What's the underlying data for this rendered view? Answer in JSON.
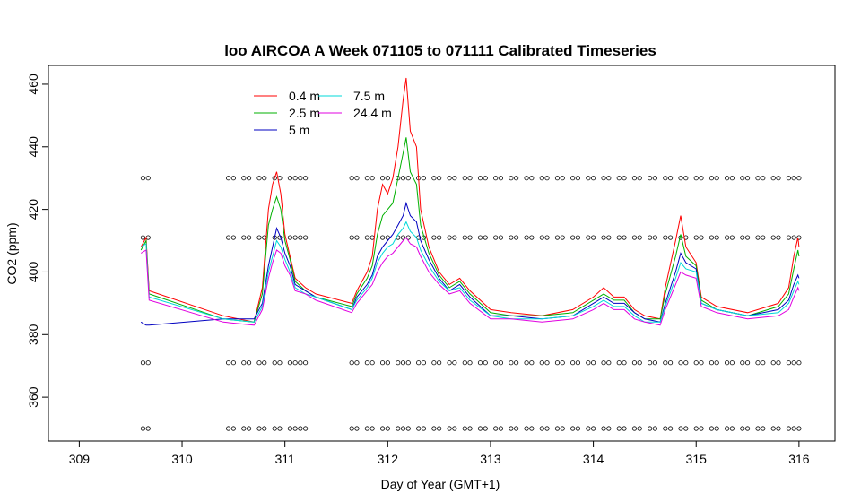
{
  "chart_data": {
    "type": "line",
    "title": "loo AIRCOA A  Week 071105 to 071111  Calibrated Timeseries",
    "xlabel": "Day of Year (GMT+1)",
    "ylabel": "CO2 (ppm)",
    "xlim": [
      308.7,
      316.35
    ],
    "ylim": [
      346,
      466
    ],
    "xticks": [
      309,
      310,
      311,
      312,
      313,
      314,
      315,
      316
    ],
    "yticks": [
      360,
      380,
      400,
      420,
      440,
      460
    ],
    "grid": false,
    "legend_position": "top-left",
    "series": [
      {
        "name": "0.4 m",
        "color": "#ff0000",
        "points": [
          [
            309.6,
            408
          ],
          [
            309.65,
            411
          ],
          [
            309.68,
            394
          ],
          [
            310.4,
            386
          ],
          [
            310.7,
            384
          ],
          [
            310.78,
            395
          ],
          [
            310.84,
            420
          ],
          [
            310.88,
            428
          ],
          [
            310.92,
            432
          ],
          [
            310.96,
            425
          ],
          [
            311.0,
            412
          ],
          [
            311.05,
            405
          ],
          [
            311.1,
            398
          ],
          [
            311.2,
            395
          ],
          [
            311.3,
            393
          ],
          [
            311.65,
            390
          ],
          [
            311.7,
            394
          ],
          [
            311.8,
            400
          ],
          [
            311.85,
            405
          ],
          [
            311.9,
            420
          ],
          [
            311.95,
            428
          ],
          [
            312.0,
            425
          ],
          [
            312.05,
            430
          ],
          [
            312.1,
            440
          ],
          [
            312.15,
            455
          ],
          [
            312.18,
            462
          ],
          [
            312.22,
            445
          ],
          [
            312.28,
            440
          ],
          [
            312.32,
            420
          ],
          [
            312.4,
            408
          ],
          [
            312.5,
            400
          ],
          [
            312.6,
            396
          ],
          [
            312.7,
            398
          ],
          [
            312.8,
            394
          ],
          [
            313.0,
            388
          ],
          [
            313.2,
            387
          ],
          [
            313.5,
            386
          ],
          [
            313.8,
            388
          ],
          [
            314.0,
            392
          ],
          [
            314.1,
            395
          ],
          [
            314.2,
            392
          ],
          [
            314.3,
            392
          ],
          [
            314.4,
            388
          ],
          [
            314.5,
            386
          ],
          [
            314.65,
            385
          ],
          [
            314.7,
            395
          ],
          [
            314.8,
            410
          ],
          [
            314.85,
            418
          ],
          [
            314.9,
            408
          ],
          [
            315.0,
            403
          ],
          [
            315.05,
            392
          ],
          [
            315.2,
            389
          ],
          [
            315.5,
            387
          ],
          [
            315.8,
            390
          ],
          [
            315.9,
            395
          ],
          [
            315.95,
            405
          ],
          [
            315.99,
            411
          ],
          [
            316.0,
            408
          ]
        ]
      },
      {
        "name": "2.5 m",
        "color": "#00b000",
        "points": [
          [
            309.6,
            407
          ],
          [
            309.65,
            410
          ],
          [
            309.68,
            393
          ],
          [
            310.4,
            385
          ],
          [
            310.7,
            384
          ],
          [
            310.78,
            393
          ],
          [
            310.84,
            415
          ],
          [
            310.88,
            420
          ],
          [
            310.92,
            424
          ],
          [
            310.96,
            420
          ],
          [
            311.0,
            410
          ],
          [
            311.05,
            404
          ],
          [
            311.1,
            397
          ],
          [
            311.2,
            394
          ],
          [
            311.3,
            392
          ],
          [
            311.65,
            389
          ],
          [
            311.7,
            393
          ],
          [
            311.8,
            398
          ],
          [
            311.85,
            402
          ],
          [
            311.9,
            412
          ],
          [
            311.95,
            418
          ],
          [
            312.0,
            420
          ],
          [
            312.05,
            422
          ],
          [
            312.1,
            430
          ],
          [
            312.15,
            438
          ],
          [
            312.18,
            443
          ],
          [
            312.22,
            432
          ],
          [
            312.28,
            428
          ],
          [
            312.32,
            415
          ],
          [
            312.4,
            406
          ],
          [
            312.5,
            399
          ],
          [
            312.6,
            395
          ],
          [
            312.7,
            397
          ],
          [
            312.8,
            393
          ],
          [
            313.0,
            387
          ],
          [
            313.2,
            386
          ],
          [
            313.5,
            386
          ],
          [
            313.8,
            387
          ],
          [
            314.0,
            391
          ],
          [
            314.1,
            393
          ],
          [
            314.2,
            391
          ],
          [
            314.3,
            391
          ],
          [
            314.4,
            387
          ],
          [
            314.5,
            385
          ],
          [
            314.65,
            385
          ],
          [
            314.7,
            393
          ],
          [
            314.8,
            405
          ],
          [
            314.85,
            412
          ],
          [
            314.9,
            405
          ],
          [
            315.0,
            402
          ],
          [
            315.05,
            391
          ],
          [
            315.2,
            388
          ],
          [
            315.5,
            386
          ],
          [
            315.8,
            389
          ],
          [
            315.9,
            393
          ],
          [
            315.95,
            401
          ],
          [
            315.99,
            407
          ],
          [
            316.0,
            405
          ]
        ]
      },
      {
        "name": "5 m",
        "color": "#0000c0",
        "points": [
          [
            309.6,
            384
          ],
          [
            309.65,
            383
          ],
          [
            309.68,
            383
          ],
          [
            310.4,
            385
          ],
          [
            310.7,
            385
          ],
          [
            310.78,
            390
          ],
          [
            310.84,
            402
          ],
          [
            310.88,
            408
          ],
          [
            310.92,
            414
          ],
          [
            310.96,
            411
          ],
          [
            311.0,
            406
          ],
          [
            311.05,
            402
          ],
          [
            311.1,
            396
          ],
          [
            311.2,
            394
          ],
          [
            311.3,
            392
          ],
          [
            311.65,
            388
          ],
          [
            311.7,
            392
          ],
          [
            311.8,
            396
          ],
          [
            311.85,
            399
          ],
          [
            311.9,
            405
          ],
          [
            311.95,
            408
          ],
          [
            312.0,
            410
          ],
          [
            312.05,
            412
          ],
          [
            312.1,
            415
          ],
          [
            312.15,
            418
          ],
          [
            312.18,
            422
          ],
          [
            312.22,
            418
          ],
          [
            312.28,
            416
          ],
          [
            312.32,
            410
          ],
          [
            312.4,
            404
          ],
          [
            312.5,
            398
          ],
          [
            312.6,
            394
          ],
          [
            312.7,
            396
          ],
          [
            312.8,
            392
          ],
          [
            313.0,
            386
          ],
          [
            313.2,
            386
          ],
          [
            313.5,
            385
          ],
          [
            313.8,
            386
          ],
          [
            314.0,
            390
          ],
          [
            314.1,
            392
          ],
          [
            314.2,
            390
          ],
          [
            314.3,
            390
          ],
          [
            314.4,
            387
          ],
          [
            314.5,
            385
          ],
          [
            314.65,
            384
          ],
          [
            314.7,
            390
          ],
          [
            314.8,
            400
          ],
          [
            314.85,
            406
          ],
          [
            314.9,
            403
          ],
          [
            315.0,
            401
          ],
          [
            315.05,
            390
          ],
          [
            315.2,
            388
          ],
          [
            315.5,
            386
          ],
          [
            315.8,
            388
          ],
          [
            315.9,
            391
          ],
          [
            315.95,
            396
          ],
          [
            315.99,
            399
          ],
          [
            316.0,
            398
          ]
        ]
      },
      {
        "name": "7.5 m",
        "color": "#00d8d8",
        "points": [
          [
            309.6,
            408
          ],
          [
            309.65,
            409
          ],
          [
            309.68,
            392
          ],
          [
            310.4,
            385
          ],
          [
            310.7,
            384
          ],
          [
            310.78,
            389
          ],
          [
            310.84,
            400
          ],
          [
            310.88,
            405
          ],
          [
            310.92,
            410
          ],
          [
            310.96,
            408
          ],
          [
            311.0,
            404
          ],
          [
            311.05,
            400
          ],
          [
            311.1,
            395
          ],
          [
            311.2,
            393
          ],
          [
            311.3,
            392
          ],
          [
            311.65,
            388
          ],
          [
            311.7,
            391
          ],
          [
            311.8,
            395
          ],
          [
            311.85,
            398
          ],
          [
            311.9,
            403
          ],
          [
            311.95,
            406
          ],
          [
            312.0,
            408
          ],
          [
            312.05,
            409
          ],
          [
            312.1,
            412
          ],
          [
            312.15,
            414
          ],
          [
            312.18,
            416
          ],
          [
            312.22,
            413
          ],
          [
            312.28,
            411
          ],
          [
            312.32,
            407
          ],
          [
            312.4,
            402
          ],
          [
            312.5,
            397
          ],
          [
            312.6,
            394
          ],
          [
            312.7,
            395
          ],
          [
            312.8,
            391
          ],
          [
            313.0,
            386
          ],
          [
            313.2,
            385
          ],
          [
            313.5,
            385
          ],
          [
            313.8,
            386
          ],
          [
            314.0,
            389
          ],
          [
            314.1,
            391
          ],
          [
            314.2,
            389
          ],
          [
            314.3,
            389
          ],
          [
            314.4,
            386
          ],
          [
            314.5,
            384
          ],
          [
            314.65,
            384
          ],
          [
            314.7,
            389
          ],
          [
            314.8,
            398
          ],
          [
            314.85,
            403
          ],
          [
            314.9,
            401
          ],
          [
            315.0,
            400
          ],
          [
            315.05,
            390
          ],
          [
            315.2,
            388
          ],
          [
            315.5,
            386
          ],
          [
            315.8,
            387
          ],
          [
            315.9,
            390
          ],
          [
            315.95,
            394
          ],
          [
            315.99,
            397
          ],
          [
            316.0,
            396
          ]
        ]
      },
      {
        "name": "24.4 m",
        "color": "#e000e0",
        "points": [
          [
            309.6,
            406
          ],
          [
            309.65,
            407
          ],
          [
            309.68,
            391
          ],
          [
            310.4,
            384
          ],
          [
            310.7,
            383
          ],
          [
            310.78,
            388
          ],
          [
            310.84,
            398
          ],
          [
            310.88,
            403
          ],
          [
            310.92,
            407
          ],
          [
            310.96,
            406
          ],
          [
            311.0,
            402
          ],
          [
            311.05,
            399
          ],
          [
            311.1,
            394
          ],
          [
            311.2,
            393
          ],
          [
            311.3,
            391
          ],
          [
            311.65,
            387
          ],
          [
            311.7,
            390
          ],
          [
            311.8,
            394
          ],
          [
            311.85,
            396
          ],
          [
            311.9,
            400
          ],
          [
            311.95,
            403
          ],
          [
            312.0,
            405
          ],
          [
            312.05,
            406
          ],
          [
            312.1,
            408
          ],
          [
            312.15,
            410
          ],
          [
            312.18,
            411
          ],
          [
            312.22,
            409
          ],
          [
            312.28,
            408
          ],
          [
            312.32,
            405
          ],
          [
            312.4,
            400
          ],
          [
            312.5,
            396
          ],
          [
            312.6,
            393
          ],
          [
            312.7,
            394
          ],
          [
            312.8,
            390
          ],
          [
            313.0,
            385
          ],
          [
            313.2,
            385
          ],
          [
            313.5,
            384
          ],
          [
            313.8,
            385
          ],
          [
            314.0,
            388
          ],
          [
            314.1,
            390
          ],
          [
            314.2,
            388
          ],
          [
            314.3,
            388
          ],
          [
            314.4,
            385
          ],
          [
            314.5,
            384
          ],
          [
            314.65,
            383
          ],
          [
            314.7,
            388
          ],
          [
            314.8,
            396
          ],
          [
            314.85,
            400
          ],
          [
            314.9,
            399
          ],
          [
            315.0,
            398
          ],
          [
            315.05,
            389
          ],
          [
            315.2,
            387
          ],
          [
            315.5,
            385
          ],
          [
            315.8,
            386
          ],
          [
            315.9,
            388
          ],
          [
            315.95,
            392
          ],
          [
            315.99,
            395
          ],
          [
            316.0,
            394
          ]
        ]
      }
    ],
    "reference_markers": {
      "levels": [
        430,
        411,
        371,
        350
      ],
      "x": [
        309.62,
        309.67,
        310.45,
        310.5,
        310.6,
        310.65,
        310.75,
        310.8,
        310.9,
        310.95,
        311.05,
        311.1,
        311.15,
        311.2,
        311.65,
        311.7,
        311.8,
        311.85,
        311.95,
        312.0,
        312.1,
        312.15,
        312.2,
        312.3,
        312.35,
        312.45,
        312.5,
        312.6,
        312.65,
        312.75,
        312.8,
        312.9,
        312.95,
        313.05,
        313.1,
        313.2,
        313.25,
        313.35,
        313.4,
        313.5,
        313.55,
        313.65,
        313.7,
        313.8,
        313.85,
        313.95,
        314.0,
        314.1,
        314.15,
        314.25,
        314.3,
        314.4,
        314.45,
        314.55,
        314.6,
        314.7,
        314.75,
        314.85,
        314.9,
        315.0,
        315.05,
        315.15,
        315.2,
        315.3,
        315.35,
        315.45,
        315.5,
        315.6,
        315.65,
        315.75,
        315.8,
        315.9,
        315.95,
        316.0
      ]
    }
  }
}
